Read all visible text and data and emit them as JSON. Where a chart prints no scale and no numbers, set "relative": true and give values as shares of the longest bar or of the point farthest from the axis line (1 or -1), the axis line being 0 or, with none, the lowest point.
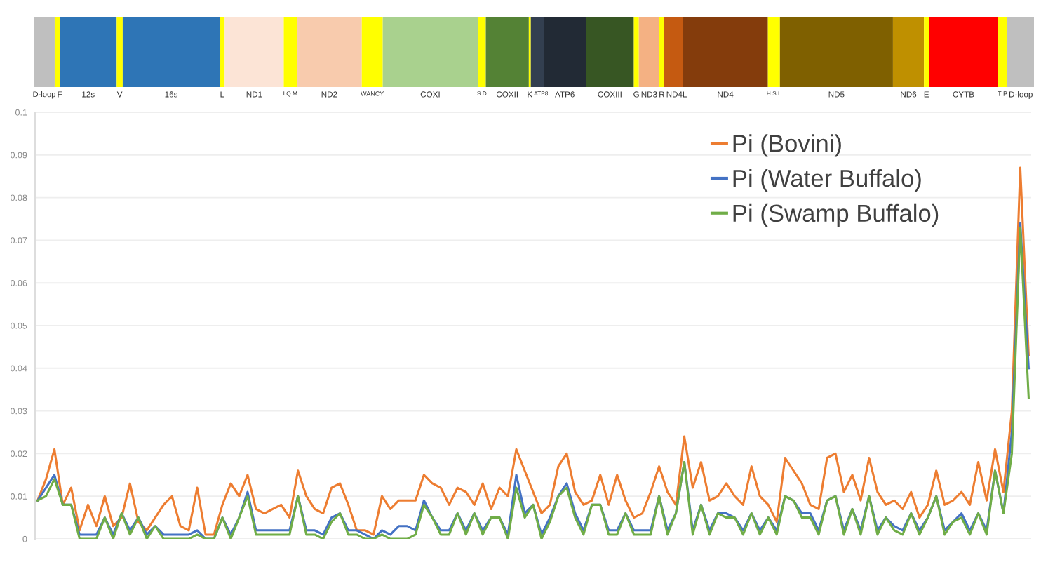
{
  "chart_data": [
    {
      "type": "bar",
      "orientation": "horizontal",
      "stacked": true,
      "relative": true,
      "categories": [
        null
      ],
      "series": [
        {
          "name": "D-loop",
          "color": "#bfbfbf",
          "values": [
            0.021
          ]
        },
        {
          "name": "F",
          "color": "#ffff00",
          "values": [
            0.005
          ]
        },
        {
          "name": "12s",
          "color": "#2e75b6",
          "values": [
            0.057
          ]
        },
        {
          "name": "V",
          "color": "#ffff00",
          "values": [
            0.006
          ]
        },
        {
          "name": "16s",
          "color": "#2e75b6",
          "values": [
            0.097
          ]
        },
        {
          "name": "L",
          "color": "#ffff00",
          "values": [
            0.005
          ]
        },
        {
          "name": "ND1",
          "color": "#fce4d6",
          "values": [
            0.059
          ]
        },
        {
          "name": "I Q M",
          "color": "#ffff00",
          "values": [
            0.013
          ]
        },
        {
          "name": "ND2",
          "color": "#f8cbad",
          "values": [
            0.065
          ]
        },
        {
          "name": "WANCY",
          "color": "#ffff00",
          "values": [
            0.021
          ]
        },
        {
          "name": "COXI",
          "color": "#a9d18e",
          "values": [
            0.095
          ]
        },
        {
          "name": "S D",
          "color": "#ffff00",
          "values": [
            0.008
          ]
        },
        {
          "name": "COXII",
          "color": "#548235",
          "values": [
            0.043
          ]
        },
        {
          "name": "K",
          "color": "#ffff00",
          "values": [
            0.002
          ]
        },
        {
          "name": "ATP8",
          "color": "#333f50",
          "values": [
            0.013
          ]
        },
        {
          "name": "ATP6",
          "color": "#222a35",
          "values": [
            0.042
          ]
        },
        {
          "name": "COXIII",
          "color": "#375623",
          "values": [
            0.048
          ]
        },
        {
          "name": "G",
          "color": "#ffff00",
          "values": [
            0.005
          ]
        },
        {
          "name": "ND3",
          "color": "#f4b183",
          "values": [
            0.02
          ]
        },
        {
          "name": "R",
          "color": "#ffff00",
          "values": [
            0.005
          ]
        },
        {
          "name": "ND4L",
          "color": "#c55a11",
          "values": [
            0.019
          ]
        },
        {
          "name": "ND4",
          "color": "#843c0c",
          "values": [
            0.085
          ]
        },
        {
          "name": "H S L",
          "color": "#ffff00",
          "values": [
            0.012
          ]
        },
        {
          "name": "ND5",
          "color": "#7f6000",
          "values": [
            0.113
          ]
        },
        {
          "name": "ND6",
          "color": "#bf9000",
          "values": [
            0.031
          ]
        },
        {
          "name": "E",
          "color": "#ffff00",
          "values": [
            0.005
          ]
        },
        {
          "name": "CYTB",
          "color": "#ff0000",
          "values": [
            0.069
          ]
        },
        {
          "name": "T P",
          "color": "#ffff00",
          "values": [
            0.009
          ]
        },
        {
          "name": "D-loop",
          "color": "#bfbfbf",
          "values": [
            0.027
          ]
        }
      ]
    },
    {
      "type": "line",
      "ylim": [
        0,
        0.1
      ],
      "yticks": [
        0,
        0.01,
        0.02,
        0.03,
        0.04,
        0.05,
        0.06,
        0.07,
        0.08,
        0.09,
        0.1
      ],
      "tick_labels": "y",
      "grid": "y",
      "legend": "top right",
      "marker": "none",
      "line_style": "solid",
      "categories": [
        null,
        null,
        null,
        null,
        null,
        null,
        null,
        null,
        null,
        null,
        null,
        null,
        null,
        null,
        null,
        null,
        null,
        null,
        null,
        null,
        null,
        null,
        null,
        null,
        null,
        null,
        null,
        null,
        null,
        null,
        null,
        null,
        null,
        null,
        null,
        null,
        null,
        null,
        null,
        null,
        null,
        null,
        null,
        null,
        null,
        null,
        null,
        null,
        null,
        null,
        null,
        null,
        null,
        null,
        null,
        null,
        null,
        null,
        null,
        null,
        null,
        null,
        null,
        null,
        null,
        null,
        null,
        null,
        null,
        null,
        null,
        null,
        null,
        null,
        null,
        null,
        null,
        null,
        null,
        null,
        null,
        null,
        null,
        null,
        null,
        null,
        null,
        null,
        null,
        null,
        null,
        null,
        null,
        null,
        null,
        null,
        null,
        null,
        null,
        null,
        null,
        null,
        null,
        null,
        null,
        null,
        null,
        null,
        null,
        null,
        null,
        null,
        null,
        null,
        null,
        null,
        null,
        null,
        null
      ],
      "series": [
        {
          "name": "Pi (Bovini)",
          "color": "#ed7d31",
          "values": [
            0.009,
            0.014,
            0.021,
            0.008,
            0.012,
            0.002,
            0.008,
            0.003,
            0.01,
            0.003,
            0.005,
            0.013,
            0.004,
            0.002,
            0.005,
            0.008,
            0.01,
            0.003,
            0.002,
            0.012,
            0.001,
            0.001,
            0.008,
            0.013,
            0.01,
            0.015,
            0.007,
            0.006,
            0.007,
            0.008,
            0.005,
            0.016,
            0.01,
            0.007,
            0.006,
            0.012,
            0.013,
            0.008,
            0.002,
            0.002,
            0.001,
            0.01,
            0.007,
            0.009,
            0.009,
            0.009,
            0.015,
            0.013,
            0.012,
            0.008,
            0.012,
            0.011,
            0.008,
            0.013,
            0.007,
            0.012,
            0.01,
            0.021,
            0.016,
            0.011,
            0.006,
            0.008,
            0.017,
            0.02,
            0.011,
            0.008,
            0.009,
            0.015,
            0.008,
            0.015,
            0.009,
            0.005,
            0.006,
            0.011,
            0.017,
            0.011,
            0.008,
            0.024,
            0.012,
            0.018,
            0.009,
            0.01,
            0.013,
            0.01,
            0.008,
            0.017,
            0.01,
            0.008,
            0.004,
            0.019,
            0.016,
            0.013,
            0.008,
            0.007,
            0.019,
            0.02,
            0.011,
            0.015,
            0.009,
            0.019,
            0.011,
            0.008,
            0.009,
            0.007,
            0.011,
            0.005,
            0.008,
            0.016,
            0.008,
            0.009,
            0.011,
            0.008,
            0.018,
            0.009,
            0.021,
            0.011,
            0.03,
            0.087,
            0.043
          ]
        },
        {
          "name": "Pi (Water Buffalo)",
          "color": "#4472c4",
          "values": [
            0.009,
            0.012,
            0.015,
            0.008,
            0.008,
            0.001,
            0.001,
            0.001,
            0.005,
            0.001,
            0.006,
            0.002,
            0.005,
            0.001,
            0.003,
            0.001,
            0.001,
            0.001,
            0.001,
            0.002,
            0.0,
            0.0,
            0.005,
            0.001,
            0.005,
            0.011,
            0.002,
            0.002,
            0.002,
            0.002,
            0.002,
            0.01,
            0.002,
            0.002,
            0.001,
            0.005,
            0.006,
            0.002,
            0.002,
            0.001,
            0.0,
            0.002,
            0.001,
            0.003,
            0.003,
            0.002,
            0.009,
            0.005,
            0.002,
            0.002,
            0.006,
            0.002,
            0.006,
            0.002,
            0.005,
            0.005,
            0.001,
            0.015,
            0.006,
            0.008,
            0.001,
            0.005,
            0.01,
            0.013,
            0.006,
            0.002,
            0.008,
            0.008,
            0.002,
            0.002,
            0.006,
            0.002,
            0.002,
            0.002,
            0.01,
            0.002,
            0.006,
            0.018,
            0.002,
            0.008,
            0.002,
            0.006,
            0.006,
            0.005,
            0.002,
            0.006,
            0.002,
            0.005,
            0.002,
            0.01,
            0.009,
            0.006,
            0.006,
            0.002,
            0.009,
            0.01,
            0.002,
            0.007,
            0.002,
            0.01,
            0.002,
            0.005,
            0.003,
            0.002,
            0.006,
            0.002,
            0.005,
            0.01,
            0.002,
            0.004,
            0.006,
            0.002,
            0.006,
            0.002,
            0.016,
            0.006,
            0.025,
            0.074,
            0.04
          ]
        },
        {
          "name": "Pi (Swamp Buffalo)",
          "color": "#70ad47",
          "values": [
            0.009,
            0.01,
            0.014,
            0.008,
            0.008,
            0.0,
            0.0,
            0.0,
            0.005,
            0.0,
            0.006,
            0.001,
            0.005,
            0.0,
            0.003,
            0.0,
            0.0,
            0.0,
            0.0,
            0.001,
            0.0,
            0.0,
            0.005,
            0.0,
            0.005,
            0.01,
            0.001,
            0.001,
            0.001,
            0.001,
            0.001,
            0.01,
            0.001,
            0.001,
            0.0,
            0.004,
            0.006,
            0.001,
            0.001,
            0.0,
            0.0,
            0.001,
            0.0,
            0.0,
            0.0,
            0.001,
            0.008,
            0.005,
            0.001,
            0.001,
            0.006,
            0.001,
            0.006,
            0.001,
            0.005,
            0.005,
            0.0,
            0.012,
            0.005,
            0.008,
            0.0,
            0.004,
            0.01,
            0.012,
            0.005,
            0.001,
            0.008,
            0.008,
            0.001,
            0.001,
            0.006,
            0.001,
            0.001,
            0.001,
            0.01,
            0.001,
            0.006,
            0.018,
            0.001,
            0.008,
            0.001,
            0.006,
            0.005,
            0.005,
            0.001,
            0.006,
            0.001,
            0.005,
            0.001,
            0.01,
            0.009,
            0.005,
            0.005,
            0.001,
            0.009,
            0.01,
            0.001,
            0.007,
            0.001,
            0.01,
            0.001,
            0.005,
            0.002,
            0.001,
            0.006,
            0.001,
            0.005,
            0.01,
            0.001,
            0.004,
            0.005,
            0.001,
            0.006,
            0.001,
            0.016,
            0.006,
            0.02,
            0.073,
            0.033
          ]
        }
      ]
    }
  ]
}
